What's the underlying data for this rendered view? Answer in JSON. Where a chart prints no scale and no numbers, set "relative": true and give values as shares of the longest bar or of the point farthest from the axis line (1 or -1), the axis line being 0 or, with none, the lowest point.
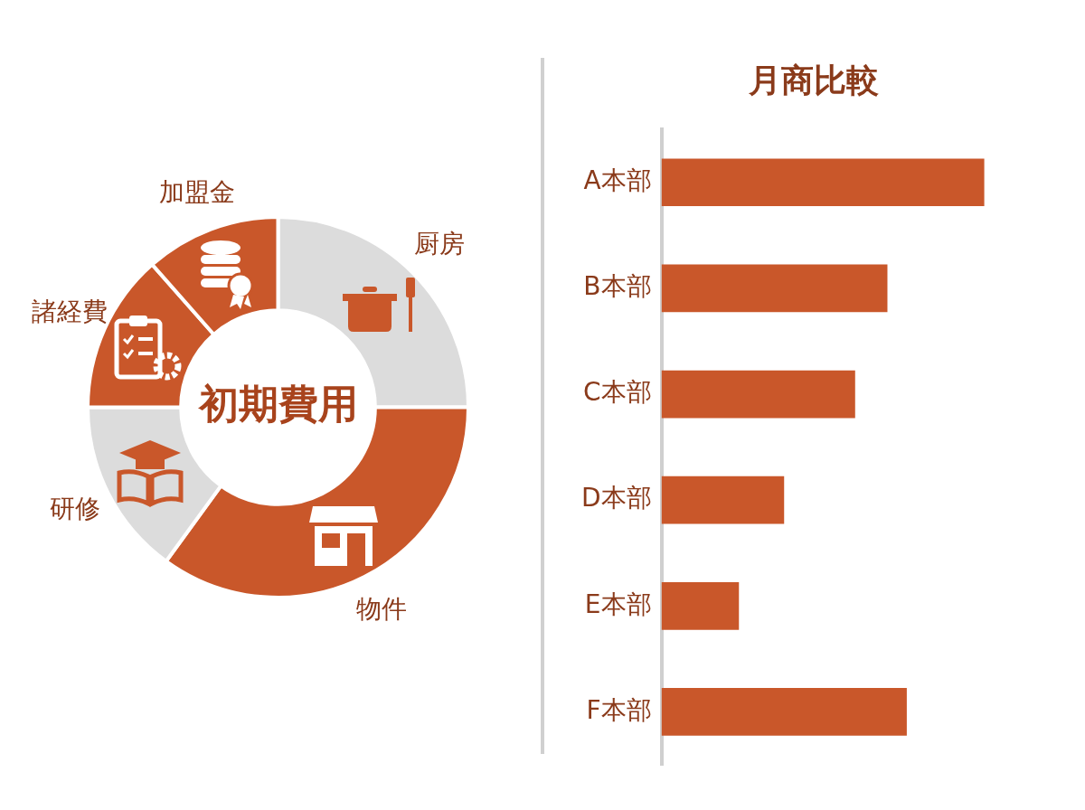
{
  "chart_data": [
    {
      "type": "donut",
      "title": "初期費用",
      "categories": [
        "厨房",
        "物件",
        "研修",
        "諸経費",
        "加盟金"
      ],
      "values": [
        25,
        35,
        15,
        13.5,
        11.5
      ],
      "colors": [
        "#dcdcdc",
        "#c9572a",
        "#dcdcdc",
        "#c9572a",
        "#c9572a"
      ]
    },
    {
      "type": "bar",
      "title": "月商比較",
      "orientation": "horizontal",
      "relative": true,
      "categories": [
        "A本部",
        "B本部",
        "C本部",
        "D本部",
        "E本部",
        "F本部"
      ],
      "values": [
        1,
        0.7,
        0.6,
        0.38,
        0.24,
        0.76
      ],
      "color": "#c9572a"
    }
  ]
}
